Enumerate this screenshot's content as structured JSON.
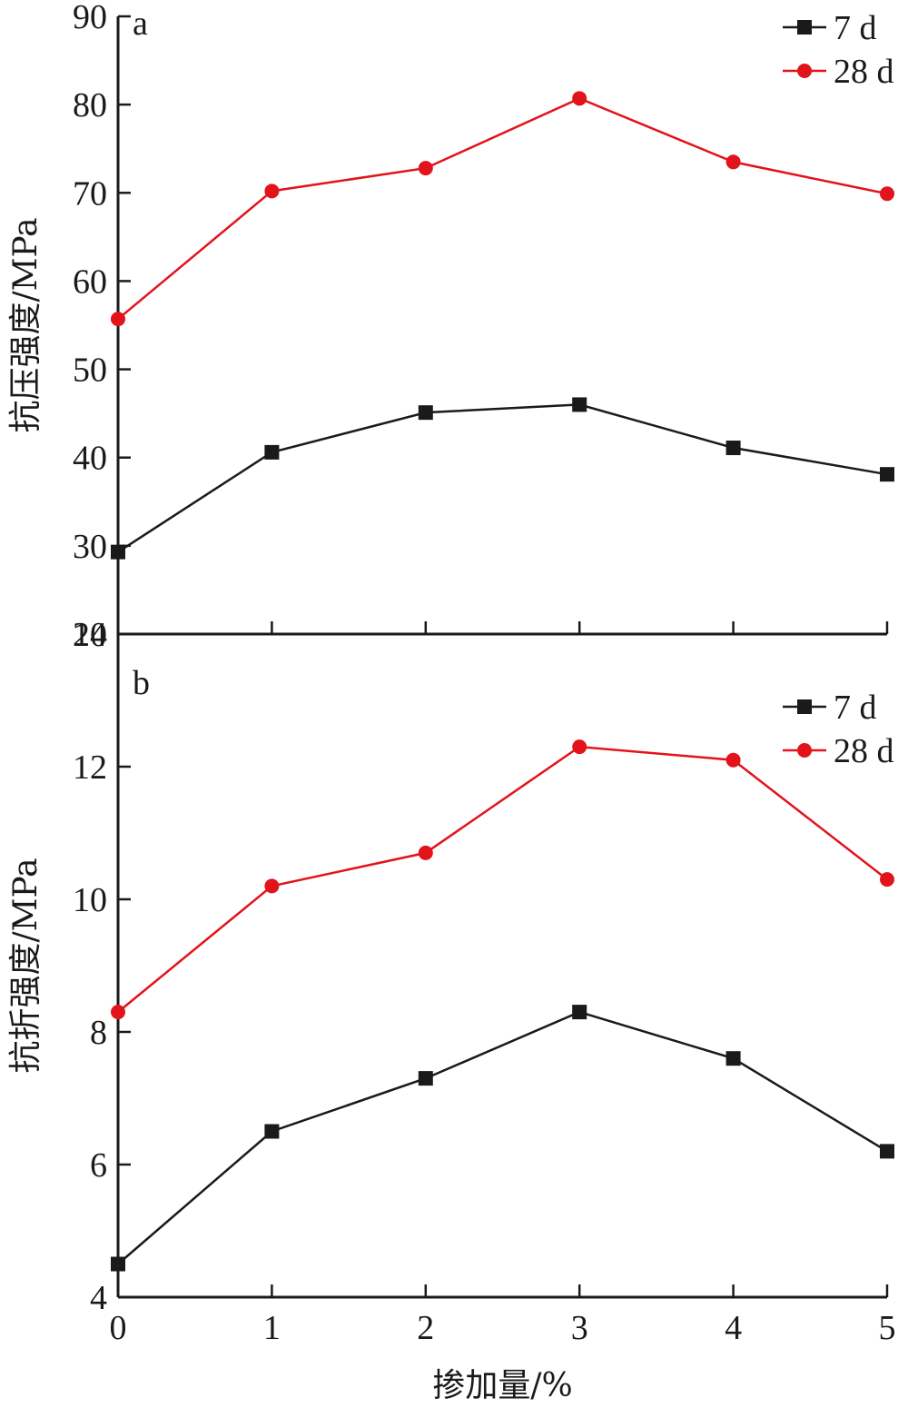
{
  "chart_data": [
    {
      "type": "line",
      "panel_label": "a",
      "ylabel": "抗压强度/MPa",
      "xlabel": "",
      "x": [
        0,
        1,
        2,
        3,
        4,
        5
      ],
      "xlim": [
        0,
        5
      ],
      "ylim": [
        20,
        90
      ],
      "yticks": [
        20,
        30,
        40,
        50,
        60,
        70,
        80,
        90
      ],
      "grid": false,
      "legend_position": "top-right",
      "series": [
        {
          "name": "7 d",
          "color": "#1a1a1a",
          "marker": "square",
          "values": [
            29.3,
            40.6,
            45.1,
            46.0,
            41.1,
            38.1
          ]
        },
        {
          "name": "28 d",
          "color": "#e3131b",
          "marker": "circle",
          "values": [
            55.7,
            70.2,
            72.8,
            80.7,
            73.5,
            69.9
          ]
        }
      ]
    },
    {
      "type": "line",
      "panel_label": "b",
      "ylabel": "抗折强度/MPa",
      "xlabel": "掺加量/%",
      "x": [
        0,
        1,
        2,
        3,
        4,
        5
      ],
      "xlim": [
        0,
        5
      ],
      "ylim": [
        4,
        14
      ],
      "xticks": [
        0,
        1,
        2,
        3,
        4,
        5
      ],
      "yticks": [
        4,
        6,
        8,
        10,
        12,
        14
      ],
      "grid": false,
      "legend_position": "top-right",
      "series": [
        {
          "name": "7 d",
          "color": "#1a1a1a",
          "marker": "square",
          "values": [
            4.5,
            6.5,
            7.3,
            8.3,
            7.6,
            6.2
          ]
        },
        {
          "name": "28 d",
          "color": "#e3131b",
          "marker": "circle",
          "values": [
            8.3,
            10.2,
            10.7,
            12.3,
            12.1,
            10.3
          ]
        }
      ]
    }
  ]
}
